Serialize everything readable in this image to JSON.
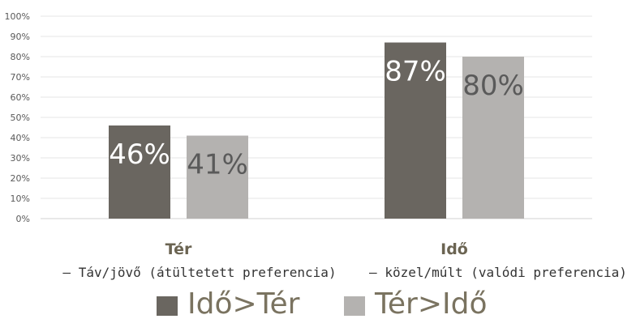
{
  "chart_data": {
    "type": "bar",
    "categories": [
      "Tér",
      "Idő"
    ],
    "category_subtitles": [
      "– Táv/jövő (átültetett preferencia)",
      "– közel/múlt (valódi preferencia)"
    ],
    "series": [
      {
        "name": "Idő>Tér",
        "values": [
          46,
          87
        ],
        "color": "#6a6660",
        "label_color": "#ffffff"
      },
      {
        "name": "Tér>Idő",
        "values": [
          41,
          80
        ],
        "color": "#b4b2b0",
        "label_color": "#5a5a5a"
      }
    ],
    "value_labels": [
      [
        "46%",
        "87%"
      ],
      [
        "41%",
        "80%"
      ]
    ],
    "y_ticks": [
      "0%",
      "10%",
      "20%",
      "30%",
      "40%",
      "50%",
      "60%",
      "70%",
      "80%",
      "90%",
      "100%"
    ],
    "ylim": [
      0,
      100
    ],
    "grid": true,
    "legend_position": "bottom"
  }
}
